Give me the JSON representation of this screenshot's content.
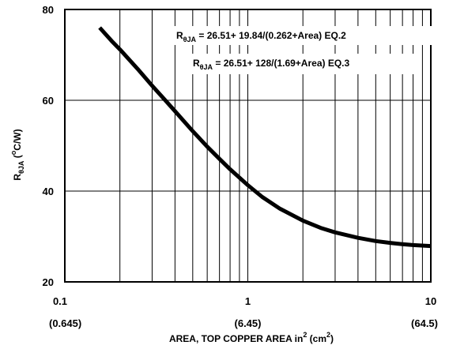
{
  "chart_data": {
    "type": "line",
    "x_scale": "log",
    "xlim": [
      0.1,
      10
    ],
    "ylim": [
      20,
      80
    ],
    "x_ticks": [
      {
        "value": 0.1,
        "label": "0.1",
        "sub": "(0.645)"
      },
      {
        "value": 1,
        "label": "1",
        "sub": "(6.45)"
      },
      {
        "value": 10,
        "label": "10",
        "sub": "(64.5)"
      }
    ],
    "y_ticks": [
      {
        "value": 20,
        "label": "20"
      },
      {
        "value": 40,
        "label": "40"
      },
      {
        "value": 60,
        "label": "60"
      },
      {
        "value": 80,
        "label": "80"
      }
    ],
    "grid": true,
    "xlabel": {
      "main": "AREA, TOP COPPER AREA in",
      "sup1": "2",
      "mid": " (cm",
      "sup2": "2",
      "end": ")"
    },
    "ylabel": {
      "main": "R",
      "sub": "θJA",
      "rest": " (",
      "sup": "o",
      "end": "C/W)"
    },
    "annotations": [
      {
        "prefix": "R",
        "sub": "θJA",
        "text": " = 26.51+ 19.84/(0.262+Area) EQ.2"
      },
      {
        "prefix": "R",
        "sub": "θJA",
        "text": " = 26.51+ 128/(1.69+Area) EQ.3"
      }
    ],
    "series": [
      {
        "x": [
          0.155,
          0.18,
          0.2,
          0.25,
          0.3,
          0.35,
          0.4,
          0.5,
          0.6,
          0.7,
          0.8,
          1.0,
          1.2,
          1.5,
          2.0,
          2.5,
          3.0,
          4.0,
          5.0,
          6.0,
          7.0,
          8.0,
          10.0
        ],
        "values": [
          76,
          73.1,
          71.2,
          66.9,
          63.2,
          60.2,
          57.6,
          53.2,
          49.8,
          47.1,
          44.8,
          41.3,
          38.7,
          36.1,
          33.5,
          31.9,
          30.9,
          29.7,
          29.0,
          28.6,
          28.3,
          28.1,
          27.9
        ],
        "color": "#000000"
      }
    ]
  }
}
